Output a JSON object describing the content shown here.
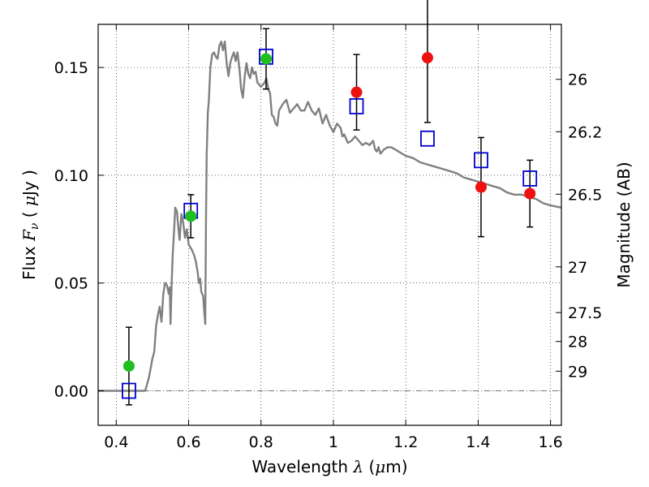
{
  "chart_data": {
    "type": "scatter",
    "xlabel": {
      "prefix": "Wavelength  ",
      "symbol": "λ",
      "unit_open": " (",
      "unit_sym": "μ",
      "unit_rest": "m)"
    },
    "ylabel": {
      "prefix": "Flux  ",
      "symbol": "F",
      "sub": "ν",
      "unit_open": "  ( ",
      "unit_sym": "μ",
      "unit_rest": "Jy )"
    },
    "y2label": "Magnitude (AB)",
    "xlim": [
      0.35,
      1.63
    ],
    "ylim": [
      -0.016,
      0.17
    ],
    "x_ticks": [
      0.4,
      0.6,
      0.8,
      1.0,
      1.2,
      1.4,
      1.6
    ],
    "x_tick_labels": [
      "0.4",
      "0.6",
      "0.8",
      "1",
      "1.2",
      "1.4",
      "1.6"
    ],
    "y_ticks": [
      0.0,
      0.05,
      0.1,
      0.15
    ],
    "y_tick_labels": [
      "0.00",
      "0.05",
      "0.10",
      "0.15"
    ],
    "y2_ticks": [
      {
        "label": "26",
        "flux": 0.1445
      },
      {
        "label": "26.2",
        "flux": 0.1202
      },
      {
        "label": "26.5",
        "flux": 0.0912
      },
      {
        "label": "27",
        "flux": 0.0575
      },
      {
        "label": "27.5",
        "flux": 0.0363
      },
      {
        "label": "28",
        "flux": 0.0229
      },
      {
        "label": "29",
        "flux": 0.0091
      }
    ],
    "grid": true,
    "zero_line": true,
    "colors": {
      "green": "#1fbf1f",
      "red": "#ee1111",
      "blue": "#0000cc",
      "model": "#808080",
      "error": "#000000"
    },
    "series": [
      {
        "marker": "circle",
        "color": "#1fbf1f",
        "points": [
          {
            "x": 0.435,
            "y": 0.0115,
            "err": 0.018
          },
          {
            "x": 0.606,
            "y": 0.081,
            "err": 0.01
          },
          {
            "x": 0.814,
            "y": 0.154,
            "err": 0.014
          }
        ]
      },
      {
        "marker": "circle",
        "color": "#ee1111",
        "points": [
          {
            "x": 1.064,
            "y": 0.1385,
            "err": 0.0175
          },
          {
            "x": 1.26,
            "y": 0.1545,
            "err": 0.03
          },
          {
            "x": 1.408,
            "y": 0.0945,
            "err": 0.023
          },
          {
            "x": 1.543,
            "y": 0.0915,
            "err": 0.0155
          }
        ]
      },
      {
        "marker": "square",
        "color": "#0000cc",
        "points": [
          {
            "x": 0.435,
            "y": 0.0
          },
          {
            "x": 0.606,
            "y": 0.0835
          },
          {
            "x": 0.814,
            "y": 0.155
          },
          {
            "x": 1.064,
            "y": 0.132
          },
          {
            "x": 1.26,
            "y": 0.117
          },
          {
            "x": 1.408,
            "y": 0.107
          },
          {
            "x": 1.543,
            "y": 0.0985
          }
        ]
      }
    ],
    "model_spectrum": [
      [
        0.35,
        0.0
      ],
      [
        0.48,
        0.0
      ],
      [
        0.49,
        0.006
      ],
      [
        0.5,
        0.015
      ],
      [
        0.505,
        0.018
      ],
      [
        0.51,
        0.03
      ],
      [
        0.515,
        0.035
      ],
      [
        0.52,
        0.039
      ],
      [
        0.525,
        0.032
      ],
      [
        0.53,
        0.045
      ],
      [
        0.535,
        0.05
      ],
      [
        0.54,
        0.049
      ],
      [
        0.545,
        0.045
      ],
      [
        0.548,
        0.048
      ],
      [
        0.55,
        0.031
      ],
      [
        0.553,
        0.05
      ],
      [
        0.556,
        0.063
      ],
      [
        0.56,
        0.075
      ],
      [
        0.563,
        0.085
      ],
      [
        0.568,
        0.083
      ],
      [
        0.572,
        0.075
      ],
      [
        0.575,
        0.07
      ],
      [
        0.58,
        0.082
      ],
      [
        0.585,
        0.078
      ],
      [
        0.59,
        0.071
      ],
      [
        0.595,
        0.075
      ],
      [
        0.6,
        0.068
      ],
      [
        0.61,
        0.065
      ],
      [
        0.615,
        0.063
      ],
      [
        0.62,
        0.06
      ],
      [
        0.625,
        0.055
      ],
      [
        0.628,
        0.05
      ],
      [
        0.632,
        0.052
      ],
      [
        0.635,
        0.046
      ],
      [
        0.64,
        0.044
      ],
      [
        0.643,
        0.037
      ],
      [
        0.646,
        0.031
      ],
      [
        0.648,
        0.078
      ],
      [
        0.65,
        0.11
      ],
      [
        0.653,
        0.129
      ],
      [
        0.656,
        0.135
      ],
      [
        0.66,
        0.15
      ],
      [
        0.665,
        0.156
      ],
      [
        0.67,
        0.157
      ],
      [
        0.675,
        0.155
      ],
      [
        0.68,
        0.154
      ],
      [
        0.685,
        0.16
      ],
      [
        0.69,
        0.162
      ],
      [
        0.695,
        0.158
      ],
      [
        0.7,
        0.162
      ],
      [
        0.705,
        0.152
      ],
      [
        0.71,
        0.146
      ],
      [
        0.715,
        0.152
      ],
      [
        0.72,
        0.155
      ],
      [
        0.725,
        0.157
      ],
      [
        0.73,
        0.153
      ],
      [
        0.735,
        0.157
      ],
      [
        0.74,
        0.15
      ],
      [
        0.745,
        0.14
      ],
      [
        0.75,
        0.136
      ],
      [
        0.755,
        0.146
      ],
      [
        0.76,
        0.152
      ],
      [
        0.765,
        0.147
      ],
      [
        0.77,
        0.145
      ],
      [
        0.775,
        0.15
      ],
      [
        0.78,
        0.147
      ],
      [
        0.785,
        0.148
      ],
      [
        0.79,
        0.143
      ],
      [
        0.8,
        0.141
      ],
      [
        0.81,
        0.143
      ],
      [
        0.815,
        0.145
      ],
      [
        0.82,
        0.14
      ],
      [
        0.825,
        0.138
      ],
      [
        0.83,
        0.128
      ],
      [
        0.835,
        0.127
      ],
      [
        0.84,
        0.124
      ],
      [
        0.845,
        0.123
      ],
      [
        0.85,
        0.13
      ],
      [
        0.86,
        0.133
      ],
      [
        0.87,
        0.135
      ],
      [
        0.88,
        0.129
      ],
      [
        0.89,
        0.131
      ],
      [
        0.9,
        0.133
      ],
      [
        0.91,
        0.13
      ],
      [
        0.92,
        0.13
      ],
      [
        0.93,
        0.134
      ],
      [
        0.94,
        0.13
      ],
      [
        0.95,
        0.128
      ],
      [
        0.96,
        0.131
      ],
      [
        0.97,
        0.124
      ],
      [
        0.98,
        0.128
      ],
      [
        0.99,
        0.123
      ],
      [
        1.0,
        0.12
      ],
      [
        1.01,
        0.124
      ],
      [
        1.02,
        0.122
      ],
      [
        1.025,
        0.118
      ],
      [
        1.03,
        0.119
      ],
      [
        1.04,
        0.115
      ],
      [
        1.05,
        0.116
      ],
      [
        1.06,
        0.118
      ],
      [
        1.07,
        0.116
      ],
      [
        1.08,
        0.114
      ],
      [
        1.09,
        0.115
      ],
      [
        1.1,
        0.114
      ],
      [
        1.11,
        0.116
      ],
      [
        1.115,
        0.112
      ],
      [
        1.12,
        0.111
      ],
      [
        1.125,
        0.113
      ],
      [
        1.13,
        0.11
      ],
      [
        1.14,
        0.112
      ],
      [
        1.15,
        0.113
      ],
      [
        1.16,
        0.113
      ],
      [
        1.17,
        0.112
      ],
      [
        1.18,
        0.111
      ],
      [
        1.19,
        0.11
      ],
      [
        1.2,
        0.109
      ],
      [
        1.22,
        0.108
      ],
      [
        1.24,
        0.106
      ],
      [
        1.26,
        0.105
      ],
      [
        1.28,
        0.104
      ],
      [
        1.3,
        0.103
      ],
      [
        1.32,
        0.102
      ],
      [
        1.34,
        0.101
      ],
      [
        1.36,
        0.099
      ],
      [
        1.38,
        0.098
      ],
      [
        1.4,
        0.097
      ],
      [
        1.42,
        0.096
      ],
      [
        1.44,
        0.095
      ],
      [
        1.46,
        0.094
      ],
      [
        1.48,
        0.092
      ],
      [
        1.5,
        0.091
      ],
      [
        1.52,
        0.091
      ],
      [
        1.54,
        0.09
      ],
      [
        1.56,
        0.089
      ],
      [
        1.58,
        0.087
      ],
      [
        1.6,
        0.086
      ],
      [
        1.63,
        0.085
      ]
    ]
  }
}
